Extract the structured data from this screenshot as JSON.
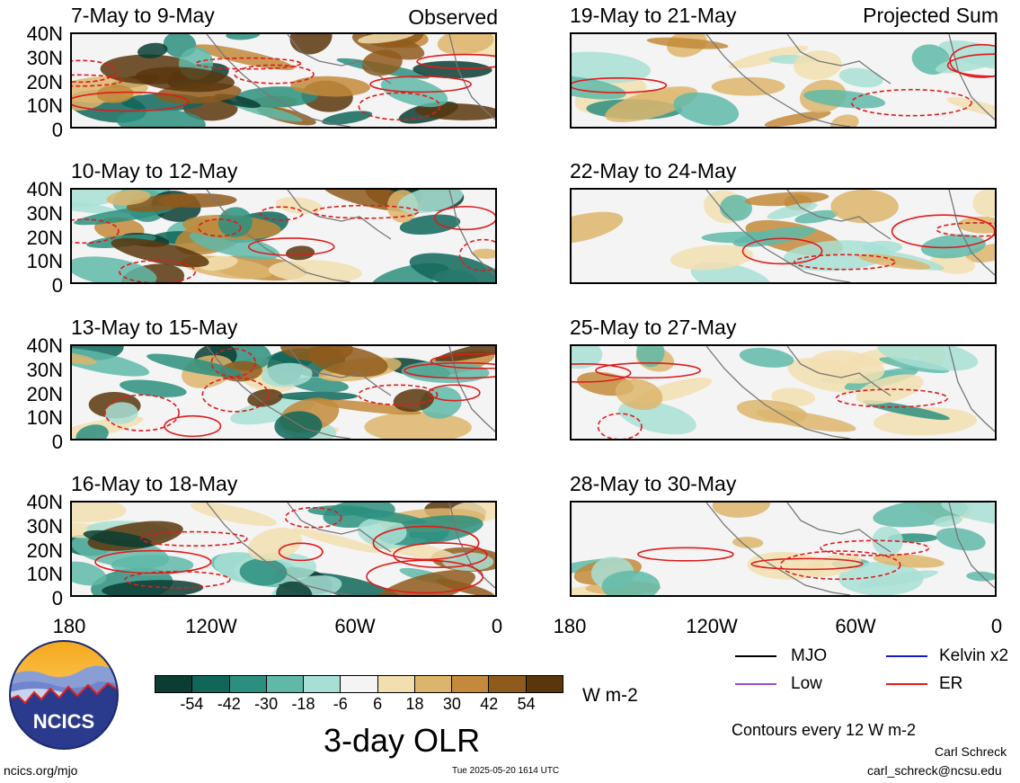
{
  "labels": {
    "observed": "Observed",
    "projected": "Projected Sum"
  },
  "panels_left": [
    {
      "title": "7-May to 9-May"
    },
    {
      "title": "10-May to 12-May"
    },
    {
      "title": "13-May to 15-May"
    },
    {
      "title": "16-May to 18-May"
    }
  ],
  "panels_right": [
    {
      "title": "19-May to 21-May"
    },
    {
      "title": "22-May to 24-May"
    },
    {
      "title": "25-May to 27-May"
    },
    {
      "title": "28-May to 30-May"
    }
  ],
  "lat_labels": [
    "40N",
    "30N",
    "20N",
    "10N",
    "0"
  ],
  "lon_labels": [
    "180",
    "120W",
    "60W",
    "0"
  ],
  "colorbar": {
    "title": "3-day OLR",
    "units": "W m-2",
    "tick_labels": [
      "-54",
      "-42",
      "-30",
      "-18",
      "-6",
      "6",
      "18",
      "30",
      "42",
      "54"
    ],
    "colors": [
      "#0b3d33",
      "#0f6659",
      "#2b8f7f",
      "#5fb8a8",
      "#a8dfd4",
      "#f4f4f4",
      "#f2dfb0",
      "#dcb56c",
      "#c28a3a",
      "#8f5b1c",
      "#5a360d"
    ]
  },
  "legend": {
    "mjo": "MJO",
    "kelvin": "Kelvin x2",
    "low": "Low",
    "er": "ER",
    "contours_note": "Contours every 12 W m-2",
    "colors": {
      "mjo": "#000000",
      "kelvin": "#1a1acc",
      "low": "#9b4fd6",
      "er": "#e01b1b"
    }
  },
  "footer": {
    "site": "ncics.org/mjo",
    "timestamp": "Tue 2025-05-20 1614 UTC",
    "author": "Carl Schreck",
    "email": "carl_schreck@ncsu.edu"
  },
  "logo": {
    "text": "NCICS"
  }
}
